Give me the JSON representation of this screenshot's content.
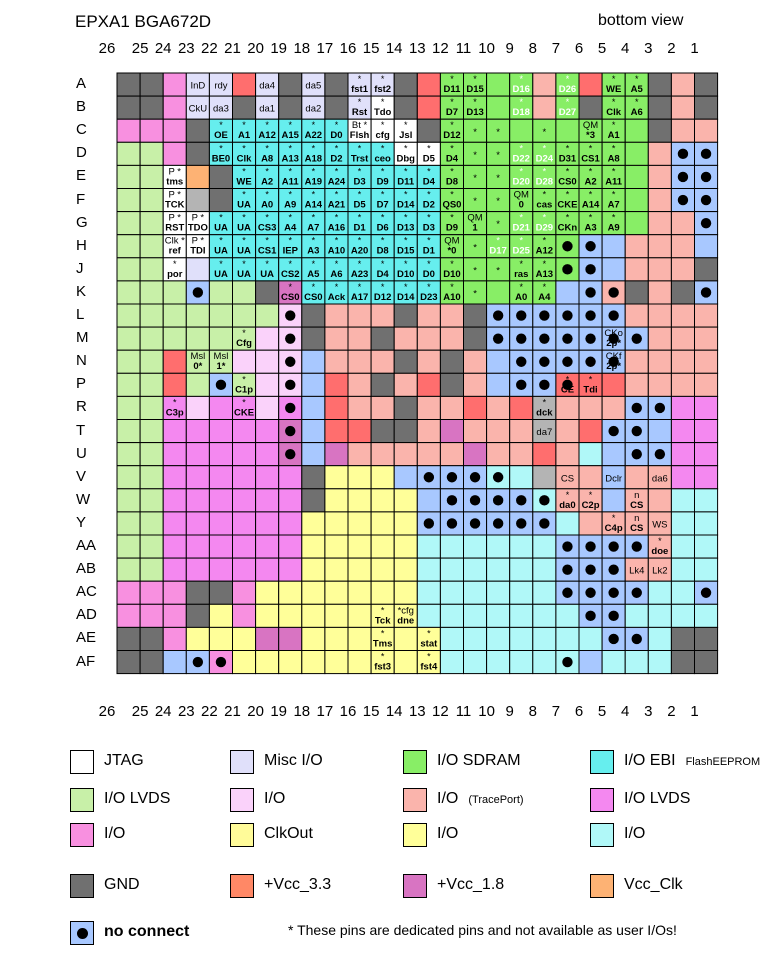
{
  "header": {
    "title": "EPXA1  BGA672D",
    "view": "bottom view"
  },
  "columns": [
    "26",
    "25",
    "24",
    "23",
    "22",
    "21",
    "20",
    "19",
    "18",
    "17",
    "16",
    "15",
    "14",
    "13",
    "12",
    "11",
    "10",
    "9",
    "8",
    "7",
    "6",
    "5",
    "4",
    "3",
    "2",
    "1"
  ],
  "rows": [
    "A",
    "B",
    "C",
    "D",
    "E",
    "F",
    "G",
    "H",
    "J",
    "K",
    "L",
    "M",
    "N",
    "P",
    "R",
    "T",
    "U",
    "V",
    "W",
    "Y",
    "AA",
    "AB",
    "AC",
    "AD",
    "AE",
    "AF"
  ],
  "colors": {
    "G": "#707070",
    "J": "#ffffff",
    "M": "#e0e0fa",
    "S": "#88ee66",
    "E": "#66eeee",
    "L": "#c8f0a8",
    "I": "#fad2fa",
    "T": "#fab4ac",
    "V": "#f488f0",
    "P": "#f890e0",
    "C": "#fffb99",
    "Y": "#ffff99",
    "Q": "#b0f8f8",
    "R": "#ff6e6e",
    "K": "#d874c2",
    "O": "#fdb274",
    "N": "#a8c8ff",
    "X": "#b4b4b4",
    "D": "#fffb99"
  },
  "grid": [
    "GGPMMRMGMGMMGRSSSSTSRSSGTG",
    "GGPMMGMGMGMJGRSSSSTSGSSGTG",
    "PPPGEEEEEEJJJGSSSSSSSSSGTT",
    "LLPGEEEEEEEEJJSSSSSSSSSTNN",
    "LLJOGEEEEEEEEESSSSSSSSSTNN",
    "LLJXGEEEEEEEEESSSSSSSSSTNN",
    "LLJJEEEEEEEEEESSSSSSSSSTTN",
    "LLJJEEEEEEEEEESSSSSSNNTTTN",
    "LLJMEEEEEEEEEESSSSSSNNTTTG",
    "LLLNLLGKEEEEEESSSSSNNTGTGN",
    "LLLLLLLIGTTTGTTGNNNNNNTTTT",
    "LLLLLLIIGTTGTTTGNNNNNNNTTT",
    "LLRLLIIINTTTGTGTNNNNNNTTTT",
    "LLRLNLIINRTGTRGTNNNRRRTTTT",
    "LLVIVVIVNRTTGTTRTRXTTTNNVV",
    "LLVVVVVKNRRGGTKTTTXTRNNNVV",
    "LLVVVVVKNKTTTTTKTTRTQNNNVV",
    "LLVVVVVVGYYYNNNNQQXTTNTTVV",
    "LLVVVVVVGYYYYNNNNNQTTNTTQQ",
    "LLVVVVVVYYYYYNNNNNNQTTTTQQ",
    "LLVVVVVVYYYYYQQQQQQNNNNTQQ",
    "LLVVVVVVYYYYYQQQQQQNNNTTQQ",
    "PPPGGPYYYYYYYQQQQQQNNNNQQN",
    "PPPGYPYYYYYYYQQQQQQQNNQQQQ",
    "GGPYYYKKYYYYYYQQQQQQQNNQGG",
    "GGNNPYYYYYYYYYQQQQQQNQQQGG"
  ],
  "no_connect": [
    "D2",
    "D1",
    "E2",
    "E1",
    "F2",
    "F1",
    "G1",
    "H7",
    "H6",
    "J7",
    "J6",
    "K23",
    "K6",
    "K5",
    "K1",
    "L19",
    "L10",
    "L9",
    "L8",
    "L7",
    "L6",
    "L5",
    "M19",
    "M10",
    "M9",
    "M8",
    "M7",
    "M6",
    "M5",
    "M4",
    "N19",
    "N9",
    "N8",
    "N7",
    "N6",
    "N5",
    "P22",
    "P19",
    "P9",
    "P8",
    "P7",
    "R19",
    "R4",
    "R3",
    "T19",
    "T5",
    "T4",
    "U19",
    "U4",
    "U3",
    "V13",
    "V12",
    "V11",
    "V10",
    "W12",
    "W11",
    "W10",
    "W9",
    "W8",
    "Y13",
    "Y12",
    "Y11",
    "Y10",
    "Y9",
    "Y8",
    "AA7",
    "AA6",
    "AA5",
    "AA4",
    "AB7",
    "AB6",
    "AB5",
    "AC7",
    "AC6",
    "AC5",
    "AC4",
    "AC1",
    "AD6",
    "AD5",
    "AE5",
    "AE4",
    "AF23",
    "AF22",
    "AF7"
  ],
  "pins": {
    "A23": "InD",
    "A22": "rdy",
    "A20": "da4",
    "A18": "da5",
    "A16": "*|fst1",
    "A15": "*|fst2",
    "A12": "*|D11",
    "A11": "*|D15",
    "A9": "*|D16",
    "A7": "*|D26",
    "A5": "*|WE",
    "A4": "*|A5",
    "B23": "CkU",
    "B22": "da3",
    "B20": "da1",
    "B18": "da2",
    "B16": "*|Rst",
    "B15": "*|Tdo",
    "B12": "*|D7",
    "B11": "*|D13",
    "B9": "*|D18",
    "B7": "*|D27",
    "B5": "*|Clk",
    "B4": "*|A6",
    "C22": "*|OE",
    "C21": "*|A1",
    "C20": "*|A12",
    "C19": "*|A15",
    "C18": "*|A22",
    "C17": "*|D0",
    "C16": "Bt *|Flsh",
    "C15": "*|cfg",
    "C14": "*|Jsl",
    "C12": "*|D12",
    "C11": "*",
    "C10": "*",
    "C8": "*",
    "C6": "QM|*3",
    "C5": "*|A1",
    "D22": "*|BE0",
    "D21": "*|Clk",
    "D20": "*|A8",
    "D19": "*|A13",
    "D18": "*|A18",
    "D17": "*|D2",
    "D16": "*|Trst",
    "D15": "*|ceo",
    "D14": "*|Dbg",
    "D13": "*|D5",
    "D12": "*|D4",
    "D11": "*",
    "D10": "*",
    "D9": "*|D22",
    "D8": "*|D24",
    "D7": "*|D31",
    "D6": "*|CS1",
    "D5": "*|A8",
    "E24": "P *|tms",
    "E21": "*|WE",
    "E20": "*|A2",
    "E19": "*|A11",
    "E18": "*|A19",
    "E17": "*|A24",
    "E16": "*|D3",
    "E15": "*|D9",
    "E14": "*|D11",
    "E13": "*|D4",
    "E12": "*|D8",
    "E11": "*",
    "E10": "*",
    "E9": "*|D20",
    "E8": "*|D28",
    "E7": "*|CS0",
    "E6": "*|A2",
    "E5": "*|A11",
    "F24": "P *|TCK",
    "F21": "*|UA",
    "F20": "*|A0",
    "F19": "*|A9",
    "F18": "*|A14",
    "F17": "*|A21",
    "F16": "*|D5",
    "F15": "*|D7",
    "F14": "*|D14",
    "F13": "*|D2",
    "F12": "*|QS0",
    "F11": "*",
    "F10": "*",
    "F9": "QM|0",
    "F8": "*|cas",
    "F7": "*|CKE",
    "F6": "*|A14",
    "F5": "*|A7",
    "G24": "P *|RST",
    "G23": "P *|TDO",
    "G22": "*|UA",
    "G21": "*|UA",
    "G20": "*|CS3",
    "G19": "*|A4",
    "G18": "*|A7",
    "G17": "*|A16",
    "G16": "*|D1",
    "G15": "*|D6",
    "G14": "*|D13",
    "G13": "*|D3",
    "G12": "*|D9",
    "G11": "QM|1",
    "G10": "*",
    "G9": "*|D21",
    "G8": "*|D29",
    "G7": "*|CKn",
    "G6": "*|A3",
    "G5": "*|A9",
    "H24": "Clk *|ref",
    "H23": "P *|TDI",
    "H22": "*|UA",
    "H21": "*|UA",
    "H20": "*|CS1",
    "H19": "*|IEP",
    "H18": "*|A3",
    "H17": "*|A10",
    "H16": "*|A20",
    "H15": "*|D8",
    "H14": "*|D15",
    "H13": "*|D1",
    "H12": "QM|*0",
    "H11": "*",
    "H10": "*|D17",
    "H9": "*|D25",
    "H8": "*|A12",
    "J24": "*|por",
    "J22": "*|UA",
    "J21": "*|UA",
    "J20": "*|UA",
    "J19": "*|CS2",
    "J18": "*|A5",
    "J17": "*|A6",
    "J16": "*|A23",
    "J15": "*|D4",
    "J14": "*|D10",
    "J13": "*|D0",
    "J12": "*|D10",
    "J11": "*",
    "J10": "*",
    "J9": "*|ras",
    "J8": "*|A13",
    "K19": "*|CS0",
    "K18": "*|CS0",
    "K17": "*|Ack",
    "K16": "*|A17",
    "K15": "*|D12",
    "K14": "*|D14",
    "K13": "*|D23",
    "K12": "*|A10",
    "K11": "*",
    "K9": "*|A0",
    "K8": "*|A4",
    "M21": "*|Cfg",
    "M5": "CKo|2p*",
    "N23": "Msl|0*",
    "N22": "Msl|1*",
    "N5": "CKf|2p*",
    "P21": "*|C1p",
    "P7": "*|CE",
    "P6": "*|Tdi",
    "R24": "*|C3p",
    "R21": "*|CKE",
    "R8": "*|dck",
    "T8": "da7",
    "V7": "CS",
    "V5": "Dclr",
    "V3": "da6",
    "W7": "*|da0",
    "W6": "*|C2p",
    "W4": "n|CS",
    "Y5": "*|C4p",
    "Y4": "n|CS",
    "Y3": "WS",
    "AA3": "*|doe",
    "AB4": "Lk4",
    "AB3": "Lk2",
    "AD15": "*|Tck",
    "AD14": "*cfg|dne",
    "AE15": "*|Tms",
    "AE13": "*|stat",
    "AF15": "*|fst3",
    "AF13": "*|fst4"
  },
  "legend": [
    {
      "label": "JTAG",
      "sub": "",
      "color": "#ffffff",
      "dot": false
    },
    {
      "label": "Misc I/O",
      "sub": "",
      "color": "#e0e0fa",
      "dot": false
    },
    {
      "label": "I/O  SDRAM",
      "sub": "",
      "color": "#88ee66",
      "dot": false
    },
    {
      "label": "I/O EBI",
      "sub": "FlashEEPROM",
      "color": "#66eeee",
      "dot": false
    },
    {
      "label": "I/O  LVDS",
      "sub": "",
      "color": "#c8f0a8",
      "dot": false
    },
    {
      "label": "I/O",
      "sub": "",
      "color": "#fad2fa",
      "dot": false
    },
    {
      "label": "I/O",
      "sub": "(TracePort)",
      "color": "#fab4ac",
      "dot": false
    },
    {
      "label": "I/O  LVDS",
      "sub": "",
      "color": "#f488f0",
      "dot": false
    },
    {
      "label": "I/O",
      "sub": "",
      "color": "#f890e0",
      "dot": false
    },
    {
      "label": "ClkOut",
      "sub": "",
      "color": "#fffb99",
      "dot": false
    },
    {
      "label": "I/O",
      "sub": "",
      "color": "#ffff99",
      "dot": false
    },
    {
      "label": "I/O",
      "sub": "",
      "color": "#b0f8f8",
      "dot": false
    },
    {
      "label": "GND",
      "sub": "",
      "color": "#707070",
      "dot": false
    },
    {
      "label": "+Vcc_3.3",
      "sub": "",
      "color": "#ff8866",
      "dot": false
    },
    {
      "label": "+Vcc_1.8",
      "sub": "",
      "color": "#d874c2",
      "dot": false
    },
    {
      "label": "Vcc_Clk",
      "sub": "",
      "color": "#fdb274",
      "dot": false
    },
    {
      "label": "no connect",
      "sub": "",
      "color": "#a8c8ff",
      "dot": true
    }
  ],
  "footnote": "* These pins are dedicated pins and not available as user I/Os!"
}
